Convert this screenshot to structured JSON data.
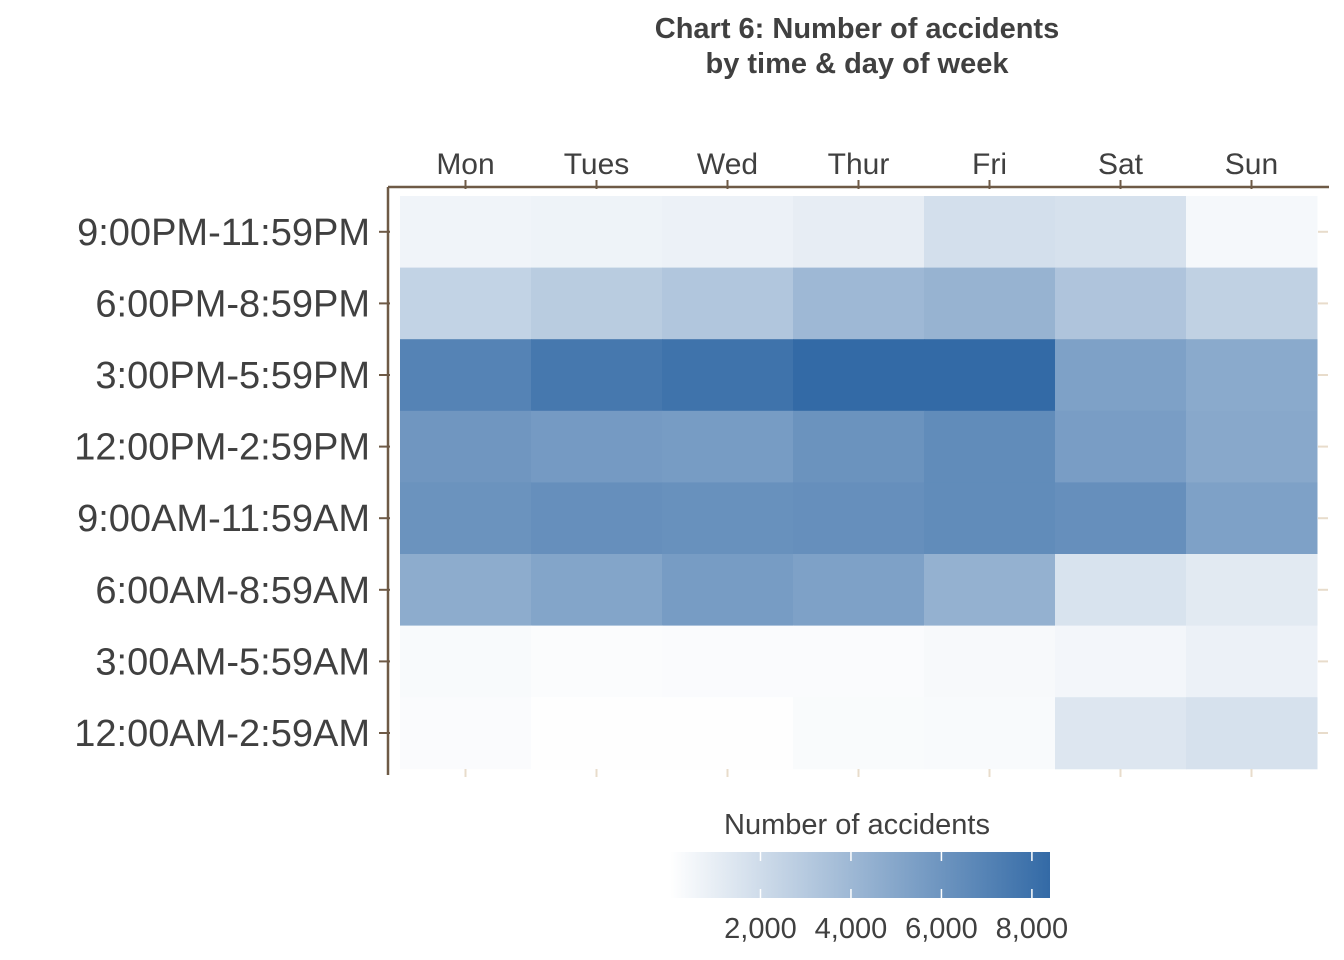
{
  "chart_data": {
    "type": "heatmap",
    "title": [
      "Chart 6: Number of accidents",
      "by time & day of week"
    ],
    "x_categories": [
      "Mon",
      "Tues",
      "Wed",
      "Thur",
      "Fri",
      "Sat",
      "Sun"
    ],
    "y_categories": [
      "9:00PM-11:59PM",
      "6:00PM-8:59PM",
      "3:00PM-5:59PM",
      "12:00PM-2:59PM",
      "9:00AM-11:59AM",
      "6:00AM-8:59AM",
      "3:00AM-5:59AM",
      "12:00AM-2:59AM"
    ],
    "values": [
      [
        600,
        700,
        800,
        1000,
        1800,
        1700,
        400
      ],
      [
        2500,
        2900,
        3200,
        4000,
        4300,
        3300,
        2600
      ],
      [
        7000,
        7600,
        7900,
        8400,
        8400,
        5300,
        4800
      ],
      [
        5900,
        5700,
        5600,
        6100,
        6500,
        5500,
        4900
      ],
      [
        6100,
        6300,
        6200,
        6300,
        6500,
        6300,
        5300
      ],
      [
        4700,
        5100,
        5600,
        5300,
        4400,
        1600,
        1200
      ],
      [
        300,
        150,
        200,
        200,
        350,
        500,
        800
      ],
      [
        200,
        50,
        50,
        250,
        300,
        1400,
        1700
      ]
    ],
    "color_range": [
      "#ffffff",
      "#336aa6"
    ],
    "legend": {
      "title": "Number of accidents",
      "ticks": [
        2000,
        4000,
        6000,
        8000
      ],
      "tick_labels": [
        "2,000",
        "4,000",
        "6,000",
        "8,000"
      ],
      "range": [
        0,
        8400
      ],
      "position": "bottom"
    }
  }
}
